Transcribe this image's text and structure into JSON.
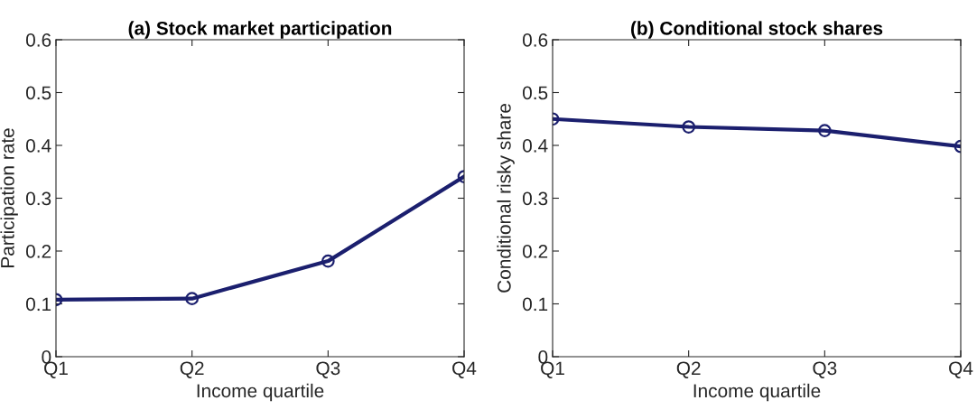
{
  "chart_data": [
    {
      "type": "line",
      "title": "(a) Stock market participation",
      "xlabel": "Income quartile",
      "ylabel": "Participation rate",
      "categories": [
        "Q1",
        "Q2",
        "Q3",
        "Q4"
      ],
      "series": [
        {
          "color": "#1b1f6e",
          "values": [
            0.108,
            0.11,
            0.181,
            0.341
          ]
        }
      ],
      "ylim": [
        0,
        0.6
      ],
      "yticks": [
        0,
        0.1,
        0.2,
        0.3,
        0.4,
        0.5,
        0.6
      ],
      "grid": false,
      "legend": false,
      "marker": "circle",
      "line_style": "solid"
    },
    {
      "type": "line",
      "title": "(b) Conditional stock shares",
      "xlabel": "Income quartile",
      "ylabel": "Conditional risky share",
      "categories": [
        "Q1",
        "Q2",
        "Q3",
        "Q4"
      ],
      "series": [
        {
          "color": "#1b1f6e",
          "values": [
            0.45,
            0.435,
            0.428,
            0.398
          ]
        }
      ],
      "ylim": [
        0,
        0.6
      ],
      "yticks": [
        0,
        0.1,
        0.2,
        0.3,
        0.4,
        0.5,
        0.6
      ],
      "grid": false,
      "legend": false,
      "marker": "circle",
      "line_style": "solid"
    }
  ]
}
